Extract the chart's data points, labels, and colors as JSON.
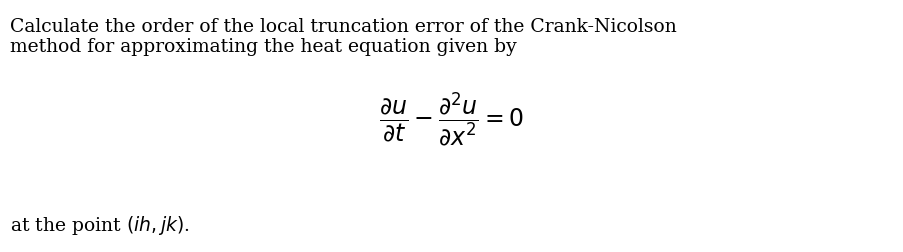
{
  "line1": "Calculate the order of the local truncation error of the Crank-Nicolson",
  "line2": "method for approximating the heat equation given by",
  "line3": "at the point $(ih, jk)$.",
  "bg_color": "#ffffff",
  "text_color": "#000000",
  "font_size_text": 13.5,
  "font_size_eq": 17,
  "fig_width": 9.04,
  "fig_height": 2.52,
  "dpi": 100
}
